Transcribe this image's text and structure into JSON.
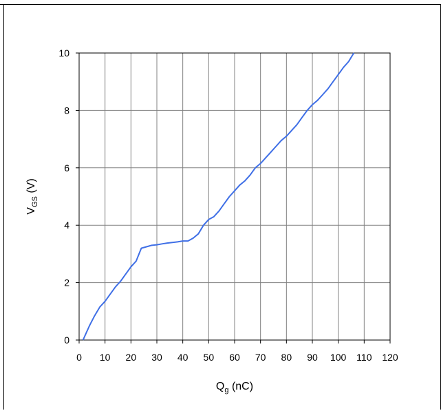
{
  "chart_data": {
    "type": "line",
    "xlabel": "Q",
    "xlabel_sub": "g",
    "xlabel_unit": " (nC)",
    "ylabel": "V",
    "ylabel_sub": "GS",
    "ylabel_unit": " (V)",
    "xlim": [
      0,
      120
    ],
    "ylim": [
      0,
      10
    ],
    "x_ticks": [
      "0",
      "10",
      "20",
      "30",
      "40",
      "50",
      "60",
      "70",
      "80",
      "90",
      "100",
      "110",
      "120"
    ],
    "y_ticks": [
      "0",
      "2",
      "4",
      "6",
      "8",
      "10"
    ],
    "grid": true,
    "line_color": "#3f6fe6",
    "series": [
      {
        "points": [
          [
            1.5,
            0.0
          ],
          [
            2.5,
            0.2
          ],
          [
            4,
            0.5
          ],
          [
            6,
            0.85
          ],
          [
            8,
            1.15
          ],
          [
            10,
            1.35
          ],
          [
            12,
            1.6
          ],
          [
            14,
            1.85
          ],
          [
            16,
            2.05
          ],
          [
            18,
            2.3
          ],
          [
            20,
            2.55
          ],
          [
            22,
            2.75
          ],
          [
            24,
            3.2
          ],
          [
            26,
            3.25
          ],
          [
            28,
            3.3
          ],
          [
            30,
            3.32
          ],
          [
            32,
            3.35
          ],
          [
            34,
            3.38
          ],
          [
            36,
            3.4
          ],
          [
            38,
            3.42
          ],
          [
            40,
            3.45
          ],
          [
            42,
            3.45
          ],
          [
            44,
            3.55
          ],
          [
            46,
            3.7
          ],
          [
            48,
            4.0
          ],
          [
            50,
            4.2
          ],
          [
            52,
            4.3
          ],
          [
            54,
            4.5
          ],
          [
            56,
            4.75
          ],
          [
            58,
            5.0
          ],
          [
            60,
            5.2
          ],
          [
            62,
            5.4
          ],
          [
            64,
            5.55
          ],
          [
            66,
            5.75
          ],
          [
            68,
            6.0
          ],
          [
            70,
            6.15
          ],
          [
            72,
            6.35
          ],
          [
            74,
            6.55
          ],
          [
            76,
            6.75
          ],
          [
            78,
            6.95
          ],
          [
            80,
            7.1
          ],
          [
            82,
            7.3
          ],
          [
            84,
            7.5
          ],
          [
            86,
            7.75
          ],
          [
            88,
            8.0
          ],
          [
            90,
            8.2
          ],
          [
            92,
            8.35
          ],
          [
            94,
            8.55
          ],
          [
            96,
            8.75
          ],
          [
            98,
            9.0
          ],
          [
            100,
            9.25
          ],
          [
            102,
            9.5
          ],
          [
            104,
            9.7
          ],
          [
            106,
            10.0
          ]
        ]
      }
    ]
  }
}
